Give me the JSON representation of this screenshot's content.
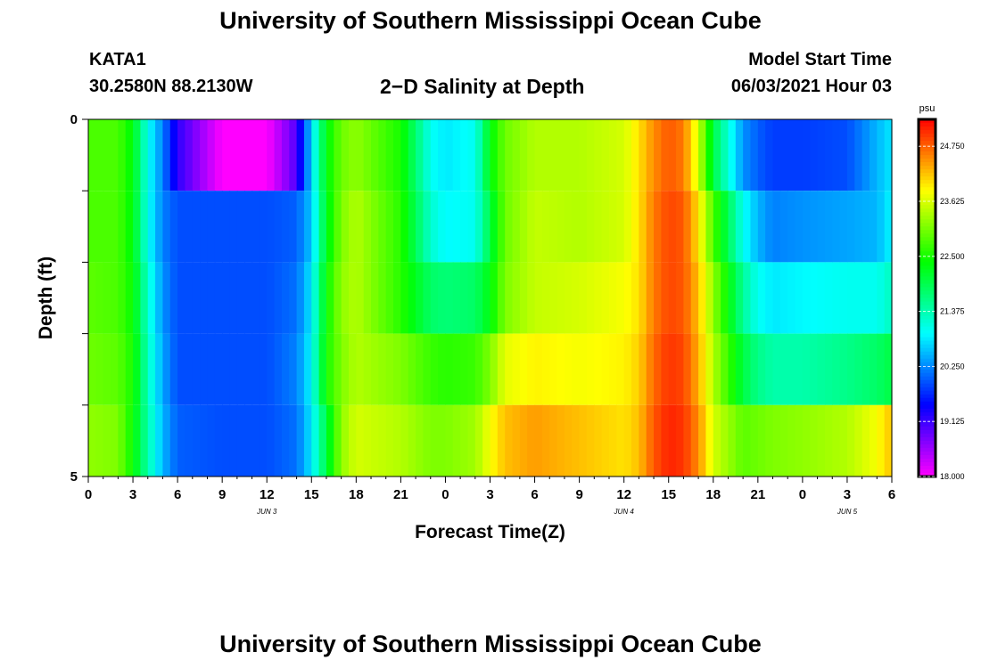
{
  "header": {
    "title": "University of Southern Mississippi Ocean Cube",
    "station_id": "KATA1",
    "station_coords": "30.2580N  88.2130W",
    "plot_title": "2−D Salinity at Depth",
    "model_start_label": "Model Start Time",
    "model_start_value": "06/03/2021 Hour 03"
  },
  "footer": {
    "title": "University of Southern Mississippi Ocean Cube"
  },
  "chart_data": {
    "type": "heatmap",
    "title": "2−D Salinity at Depth",
    "xlabel": "Forecast Time(Z)",
    "ylabel": "Depth (ft)",
    "x_tick_labels": [
      "0",
      "3",
      "6",
      "9",
      "12",
      "15",
      "18",
      "21",
      "0",
      "3",
      "6",
      "9",
      "12",
      "15",
      "18",
      "21",
      "0",
      "3",
      "6"
    ],
    "date_labels": [
      {
        "label": "JUN 3",
        "hour_index": 12
      },
      {
        "label": "JUN 4",
        "hour_index": 36
      },
      {
        "label": "JUN 5",
        "hour_index": 51
      }
    ],
    "y_tick_labels": [
      "0",
      "5"
    ],
    "ylim": [
      0,
      5
    ],
    "xlim_hours": [
      0,
      54
    ],
    "colorbar": {
      "unit": "psu",
      "range": [
        18.0,
        25.3
      ],
      "tick_labels": [
        "24.750",
        "23.625",
        "22.500",
        "21.375",
        "20.250",
        "19.125",
        "18.000"
      ],
      "tick_values": [
        24.75,
        23.625,
        22.5,
        21.375,
        20.25,
        19.125,
        18.0
      ]
    },
    "depth_layers_ft": [
      0.5,
      1.5,
      2.5,
      3.5,
      4.5
    ],
    "time_keys_hours": [
      0,
      2,
      3,
      4,
      5,
      6,
      9,
      12,
      14,
      15,
      16,
      17,
      18,
      21,
      23,
      24,
      26,
      27,
      28,
      30,
      33,
      36,
      37,
      38,
      39,
      40,
      41,
      42,
      44,
      45,
      46,
      48,
      51,
      53,
      54
    ],
    "salinity_layers": [
      {
        "depth_ft": 0.5,
        "values": [
          22.8,
          22.8,
          22.3,
          21.0,
          20.2,
          19.2,
          18.0,
          18.0,
          19.0,
          20.7,
          22.3,
          23.0,
          23.2,
          22.5,
          21.0,
          20.8,
          21.0,
          22.3,
          23.0,
          23.4,
          23.4,
          23.6,
          24.0,
          24.5,
          24.8,
          24.6,
          23.6,
          22.0,
          20.3,
          20.0,
          19.8,
          19.8,
          19.9,
          20.5,
          20.8
        ]
      },
      {
        "depth_ft": 1.5,
        "values": [
          22.8,
          22.8,
          22.3,
          21.0,
          20.2,
          19.9,
          19.9,
          19.9,
          20.0,
          20.6,
          22.2,
          23.1,
          23.4,
          22.6,
          21.2,
          20.9,
          21.0,
          22.0,
          23.0,
          23.5,
          23.4,
          23.6,
          24.0,
          24.6,
          24.9,
          24.8,
          24.0,
          22.8,
          21.0,
          20.5,
          20.2,
          20.3,
          20.4,
          20.5,
          20.9
        ]
      },
      {
        "depth_ft": 2.5,
        "values": [
          22.9,
          22.8,
          22.4,
          21.2,
          20.3,
          19.9,
          19.9,
          19.9,
          20.1,
          20.8,
          22.4,
          23.2,
          23.4,
          22.6,
          21.8,
          21.7,
          21.8,
          22.3,
          23.1,
          23.5,
          23.6,
          23.8,
          24.0,
          24.6,
          24.9,
          24.8,
          24.2,
          23.2,
          21.5,
          21.0,
          20.8,
          20.9,
          21.0,
          21.0,
          21.3
        ]
      },
      {
        "depth_ft": 3.5,
        "values": [
          23.0,
          22.9,
          22.5,
          21.3,
          20.4,
          19.9,
          19.9,
          19.9,
          20.2,
          20.9,
          22.5,
          23.1,
          23.4,
          23.1,
          22.7,
          22.6,
          22.7,
          23.1,
          23.7,
          23.9,
          23.8,
          23.9,
          24.1,
          24.7,
          25.0,
          24.9,
          24.3,
          23.4,
          22.0,
          21.6,
          21.4,
          21.4,
          21.6,
          21.8,
          22.0
        ]
      },
      {
        "depth_ft": 4.5,
        "values": [
          23.2,
          23.1,
          22.4,
          21.4,
          20.5,
          20.0,
          19.9,
          19.9,
          20.1,
          20.8,
          22.0,
          23.2,
          23.6,
          23.4,
          23.1,
          23.1,
          23.3,
          23.8,
          24.2,
          24.4,
          24.2,
          24.0,
          24.2,
          24.8,
          25.1,
          25.0,
          24.5,
          23.6,
          22.9,
          23.0,
          23.1,
          23.2,
          23.4,
          23.8,
          24.2
        ]
      }
    ]
  }
}
